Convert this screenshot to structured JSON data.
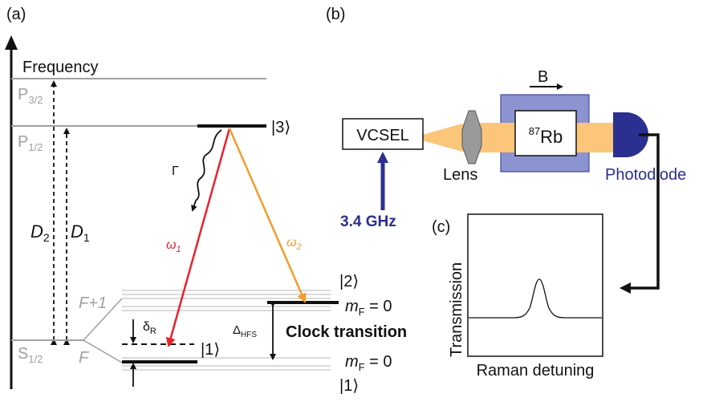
{
  "panel_a": {
    "label": "(a)",
    "frequency_axis": "Frequency",
    "p32": {
      "main": "P",
      "sub": "3/2"
    },
    "p12": {
      "main": "P",
      "sub": "1/2"
    },
    "s12": {
      "main": "S",
      "sub": "1/2"
    },
    "d2": {
      "main": "D",
      "sub": "2"
    },
    "d1": {
      "main": "D",
      "sub": "1"
    },
    "gamma": "Γ",
    "omega1": {
      "main": "ω",
      "sub": "1"
    },
    "omega2": {
      "main": "ω",
      "sub": "2"
    },
    "f_plus_1": "F+1",
    "f": "F",
    "ket3": "|3⟩",
    "ket2": "|2⟩",
    "ket1_mid": "|1⟩",
    "ket1_bottom": "|1⟩",
    "delta_r": {
      "main": "δ",
      "sub": "R"
    },
    "delta_hfs": {
      "main": "Δ",
      "sub": "HFS"
    },
    "mf_upper": {
      "main": "m",
      "sub": "F",
      "rest": " = 0"
    },
    "mf_lower": {
      "main": "m",
      "sub": "F",
      "rest": " = 0"
    },
    "clock_transition": "Clock transition",
    "colors": {
      "omega1": "#e8212e",
      "omega2": "#f39c2e",
      "gray": "#a0a0a0"
    }
  },
  "panel_b": {
    "label": "(b)",
    "vcsel": "VCSEL",
    "freq": "3.4 GHz",
    "lens": "Lens",
    "b_field": "B",
    "cell": {
      "sup": "87",
      "main": "Rb"
    },
    "photodiode": "Photodiode",
    "colors": {
      "beam": "#fbc57a",
      "cell": "#8c93d1",
      "detector": "#2b2f8f",
      "freq_arrow": "#2b2f8f"
    }
  },
  "panel_c": {
    "label": "(c)",
    "ylabel": "Transmission",
    "xlabel": "Raman detuning"
  }
}
